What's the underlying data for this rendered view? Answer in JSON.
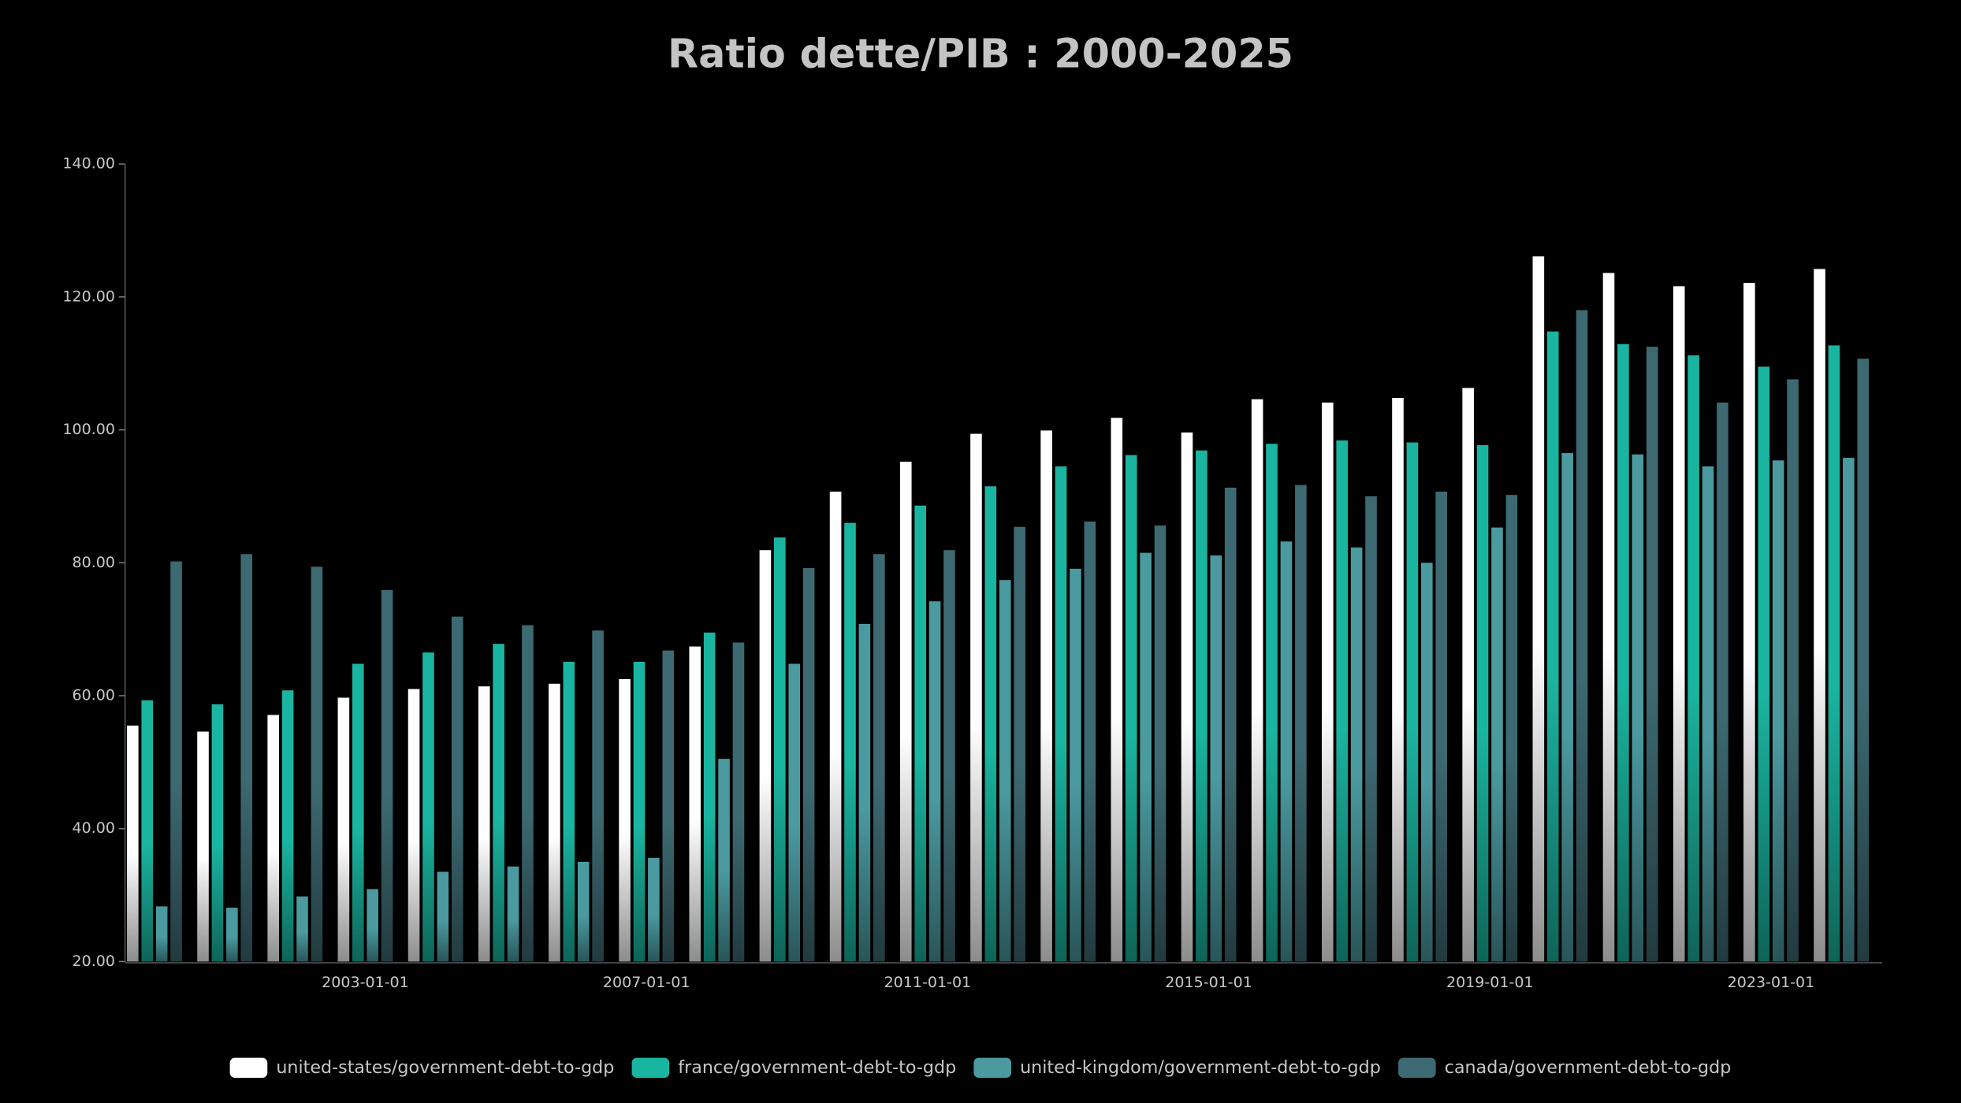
{
  "chart_data": {
    "type": "bar",
    "title": "Ratio dette/PIB : 2000-2025",
    "categories": [
      null,
      null,
      null,
      "2003-01-01",
      null,
      null,
      null,
      "2007-01-01",
      null,
      null,
      null,
      "2011-01-01",
      null,
      null,
      null,
      "2015-01-01",
      null,
      null,
      null,
      "2019-01-01",
      null,
      null,
      null,
      "2023-01-01",
      null
    ],
    "series": [
      {
        "name": "united-states/government-debt-to-gdp",
        "color": "#ffffff",
        "values": [
          55.5,
          54.6,
          57.1,
          59.7,
          61.0,
          61.4,
          61.8,
          62.5,
          67.4,
          81.9,
          90.7,
          95.2,
          99.4,
          99.9,
          101.8,
          99.6,
          104.6,
          104.1,
          104.8,
          106.3,
          126.1,
          123.6,
          121.6,
          122.1,
          124.2
        ]
      },
      {
        "name": "france/government-debt-to-gdp",
        "color": "#1ab5a0",
        "values": [
          59.3,
          58.7,
          60.8,
          64.8,
          66.5,
          67.8,
          65.1,
          65.1,
          69.5,
          83.8,
          86.0,
          88.6,
          91.5,
          94.5,
          96.2,
          96.9,
          97.9,
          98.4,
          98.1,
          97.7,
          114.8,
          112.9,
          111.2,
          109.5,
          112.7
        ]
      },
      {
        "name": "united-kingdom/government-debt-to-gdp",
        "color": "#4a9aa0",
        "values": [
          28.3,
          28.1,
          29.8,
          30.9,
          33.5,
          34.3,
          35.0,
          35.6,
          50.5,
          64.8,
          70.8,
          74.2,
          77.4,
          79.1,
          81.5,
          81.1,
          83.2,
          82.3,
          80.0,
          85.3,
          96.5,
          96.3,
          94.5,
          95.4,
          95.8
        ]
      },
      {
        "name": "canada/government-debt-to-gdp",
        "color": "#3d6a72",
        "values": [
          80.2,
          81.3,
          79.4,
          75.9,
          71.9,
          70.6,
          69.8,
          66.8,
          68.0,
          79.2,
          81.3,
          81.9,
          85.4,
          86.2,
          85.6,
          91.3,
          91.7,
          90.0,
          90.7,
          90.2,
          118.0,
          112.5,
          104.1,
          107.6,
          110.7
        ]
      }
    ],
    "ylim": [
      20,
      140
    ],
    "yticks": [
      {
        "value": 20,
        "label": "20.00"
      },
      {
        "value": 40,
        "label": "40.00"
      },
      {
        "value": 60,
        "label": "60.00"
      },
      {
        "value": 80,
        "label": "80.00"
      },
      {
        "value": 100,
        "label": "100.00"
      },
      {
        "value": 120,
        "label": "120.00"
      },
      {
        "value": 140,
        "label": "140.00"
      }
    ],
    "grid": false
  }
}
